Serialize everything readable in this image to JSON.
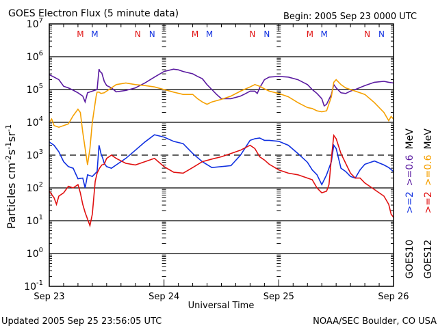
{
  "chart_data": {
    "type": "line",
    "title": "GOES Electron Flux (5 minute data)",
    "begin_label": "Begin: 2005 Sep 23 0000 UTC",
    "xlabel": "Universal Time",
    "ylabel": "Particles cm⁻²s⁻¹sr⁻¹",
    "ylabel_parts": {
      "base": "Particles cm",
      "e1": "-2",
      "s": "s",
      "e2": "-1",
      "sr": "sr",
      "e3": "-1"
    },
    "yscale": "log",
    "ylim": [
      0.1,
      10000000
    ],
    "xlim_hours": [
      0,
      72
    ],
    "x_tick_labels": [
      "Sep 23",
      "Sep 24",
      "Sep 25",
      "Sep 26"
    ],
    "y_tick_labels": [
      {
        "base": "10",
        "exp": "7"
      },
      {
        "base": "10",
        "exp": "6"
      },
      {
        "base": "10",
        "exp": "5"
      },
      {
        "base": "10",
        "exp": "4"
      },
      {
        "base": "10",
        "exp": "3"
      },
      {
        "base": "10",
        "exp": "2"
      },
      {
        "base": "10",
        "exp": "1"
      },
      {
        "base": "10",
        "exp": "0"
      },
      {
        "base": "10",
        "exp": "-1"
      }
    ],
    "threshold_lines": {
      "solid_log10": [
        6,
        5,
        4,
        2,
        1,
        0
      ],
      "dashed_log10": [
        3
      ]
    },
    "markers": [
      {
        "label": "M",
        "hour": 6.5,
        "color": "#e01010"
      },
      {
        "label": "M",
        "hour": 9.5,
        "color": "#1030e0"
      },
      {
        "label": "N",
        "hour": 18.5,
        "color": "#e01010"
      },
      {
        "label": "N",
        "hour": 21.5,
        "color": "#1030e0"
      },
      {
        "label": "M",
        "hour": 30.5,
        "color": "#e01010"
      },
      {
        "label": "M",
        "hour": 33.5,
        "color": "#1030e0"
      },
      {
        "label": "N",
        "hour": 42.5,
        "color": "#e01010"
      },
      {
        "label": "N",
        "hour": 45.5,
        "color": "#1030e0"
      },
      {
        "label": "M",
        "hour": 54.5,
        "color": "#e01010"
      },
      {
        "label": "M",
        "hour": 57.5,
        "color": "#1030e0"
      },
      {
        "label": "N",
        "hour": 66.5,
        "color": "#e01010"
      },
      {
        "label": "N",
        "hour": 69.5,
        "color": "#1030e0"
      }
    ],
    "legend": {
      "placement": "right",
      "goes10": {
        "name": "GOES10",
        "e2": ">=2",
        "e06": ">=0.6",
        "unit": "MeV"
      },
      "goes12": {
        "name": "GOES12",
        "e2": ">=2",
        "e06": ">=0.6",
        "unit": "MeV"
      }
    },
    "series": [
      {
        "name": "GOES10 >=0.6 MeV",
        "color": "#5a1aa0",
        "hours": [
          0,
          1,
          2,
          3,
          4,
          5,
          6,
          7,
          7.5,
          8,
          9,
          10,
          10.4,
          10.6,
          11,
          11.5,
          12,
          13,
          14,
          16,
          18,
          20,
          22,
          24,
          26,
          27,
          28,
          30,
          31,
          32,
          33,
          34,
          35,
          36,
          38,
          40,
          41,
          42,
          43,
          43.5,
          44,
          45,
          46,
          48,
          50,
          52,
          54,
          55,
          56,
          57,
          57.5,
          58,
          59,
          59.5,
          60,
          61,
          62,
          63,
          64,
          66,
          68,
          70,
          71,
          72
        ],
        "log10": [
          5.45,
          5.38,
          5.3,
          5.1,
          5.05,
          4.98,
          4.9,
          4.8,
          4.62,
          4.9,
          4.95,
          5.0,
          5.62,
          5.55,
          5.5,
          5.25,
          5.12,
          5.05,
          4.93,
          4.97,
          5.05,
          5.2,
          5.38,
          5.55,
          5.62,
          5.6,
          5.55,
          5.48,
          5.4,
          5.33,
          5.15,
          5.0,
          4.85,
          4.72,
          4.72,
          4.8,
          4.87,
          4.95,
          4.95,
          4.88,
          5.05,
          5.3,
          5.38,
          5.4,
          5.38,
          5.3,
          5.15,
          5.0,
          4.88,
          4.72,
          4.5,
          4.55,
          4.85,
          5.15,
          5.05,
          4.9,
          4.88,
          4.95,
          5.0,
          5.12,
          5.22,
          5.25,
          5.22,
          5.2
        ]
      },
      {
        "name": "GOES12 >=0.6 MeV",
        "color": "#f5a000",
        "hours": [
          0,
          0.5,
          1,
          2,
          3,
          4,
          5,
          6,
          6.5,
          7,
          7.5,
          8,
          8.5,
          9,
          9.5,
          9.8,
          10,
          10.4,
          10.8,
          11.5,
          12,
          13,
          14,
          16,
          18,
          20,
          22,
          24,
          26,
          28,
          30,
          31,
          32,
          33,
          34,
          36,
          38,
          40,
          42,
          43,
          44,
          45,
          46,
          48,
          50,
          52,
          54,
          55,
          56,
          57,
          58,
          59,
          59.5,
          60,
          61,
          62,
          63,
          64,
          66,
          68,
          70,
          71,
          71.5,
          72
        ],
        "log10": [
          4.0,
          4.1,
          3.9,
          3.85,
          3.9,
          3.95,
          4.2,
          4.4,
          4.3,
          3.7,
          3.2,
          2.7,
          3.2,
          4.0,
          4.5,
          4.8,
          4.92,
          4.92,
          4.88,
          4.9,
          4.95,
          5.05,
          5.15,
          5.2,
          5.15,
          5.12,
          5.08,
          5.0,
          4.92,
          4.85,
          4.85,
          4.72,
          4.62,
          4.55,
          4.62,
          4.7,
          4.8,
          4.95,
          5.08,
          5.15,
          5.1,
          5.02,
          4.95,
          4.88,
          4.78,
          4.6,
          4.45,
          4.42,
          4.35,
          4.32,
          4.35,
          4.78,
          5.22,
          5.3,
          5.15,
          5.05,
          5.0,
          4.95,
          4.85,
          4.6,
          4.3,
          4.05,
          4.18,
          4.1
        ]
      },
      {
        "name": "GOES10 >=2 MeV",
        "color": "#1030e0",
        "hours": [
          0,
          1,
          2,
          3,
          4,
          5,
          6,
          7,
          7.5,
          8,
          9,
          10,
          10.4,
          10.8,
          11.2,
          11.5,
          12,
          13,
          14,
          16,
          18,
          20,
          22,
          24,
          26,
          28,
          29,
          30,
          32,
          34,
          36,
          38,
          40,
          42,
          43,
          44,
          45,
          46,
          48,
          50,
          52,
          54,
          55,
          56,
          57,
          57.5,
          58,
          59,
          59.5,
          60,
          61,
          62,
          63,
          64,
          65,
          66,
          68,
          70,
          71,
          72
        ],
        "log10": [
          3.4,
          3.3,
          3.1,
          2.8,
          2.65,
          2.6,
          2.28,
          2.3,
          2.0,
          2.4,
          2.35,
          2.5,
          3.3,
          3.05,
          2.9,
          2.75,
          2.65,
          2.6,
          2.7,
          2.9,
          3.15,
          3.4,
          3.62,
          3.55,
          3.42,
          3.35,
          3.2,
          3.05,
          2.8,
          2.62,
          2.65,
          2.68,
          3.0,
          3.45,
          3.5,
          3.52,
          3.45,
          3.45,
          3.42,
          3.3,
          3.05,
          2.78,
          2.55,
          2.4,
          2.1,
          2.25,
          2.4,
          2.8,
          3.3,
          3.2,
          2.6,
          2.5,
          2.35,
          2.3,
          2.55,
          2.72,
          2.82,
          2.7,
          2.62,
          2.5
        ]
      },
      {
        "name": "GOES12 >=2 MeV",
        "color": "#e01010",
        "hours": [
          0,
          0.5,
          1,
          1.5,
          2,
          3,
          4,
          5,
          6,
          6.5,
          7,
          7.5,
          8,
          8.5,
          9,
          9.3,
          9.6,
          10,
          10.5,
          11,
          11.5,
          12,
          13,
          14,
          16,
          18,
          20,
          22,
          24,
          26,
          28,
          30,
          32,
          34,
          36,
          38,
          40,
          42,
          43,
          44,
          45,
          46,
          48,
          50,
          52,
          54,
          55,
          56,
          57,
          58,
          58.5,
          59,
          59.5,
          60,
          61,
          62,
          63,
          64,
          65,
          66,
          68,
          70,
          71,
          71.5,
          72
        ],
        "log10": [
          1.9,
          1.8,
          1.7,
          1.5,
          1.75,
          1.85,
          2.05,
          2.0,
          2.1,
          1.85,
          1.5,
          1.25,
          1.05,
          0.85,
          1.2,
          1.7,
          2.2,
          2.45,
          2.6,
          2.7,
          2.72,
          2.9,
          3.0,
          2.9,
          2.75,
          2.7,
          2.8,
          2.9,
          2.65,
          2.48,
          2.45,
          2.62,
          2.8,
          2.88,
          2.95,
          3.05,
          3.15,
          3.3,
          3.2,
          2.95,
          2.85,
          2.72,
          2.55,
          2.45,
          2.4,
          2.3,
          2.25,
          2.0,
          1.85,
          1.9,
          2.1,
          2.9,
          3.6,
          3.5,
          3.05,
          2.75,
          2.45,
          2.3,
          2.3,
          2.15,
          1.95,
          1.75,
          1.5,
          1.2,
          1.1
        ]
      }
    ]
  },
  "footer": {
    "updated": "Updated 2005 Sep 25 23:56:05 UTC",
    "credit": "NOAA/SEC Boulder, CO USA"
  }
}
